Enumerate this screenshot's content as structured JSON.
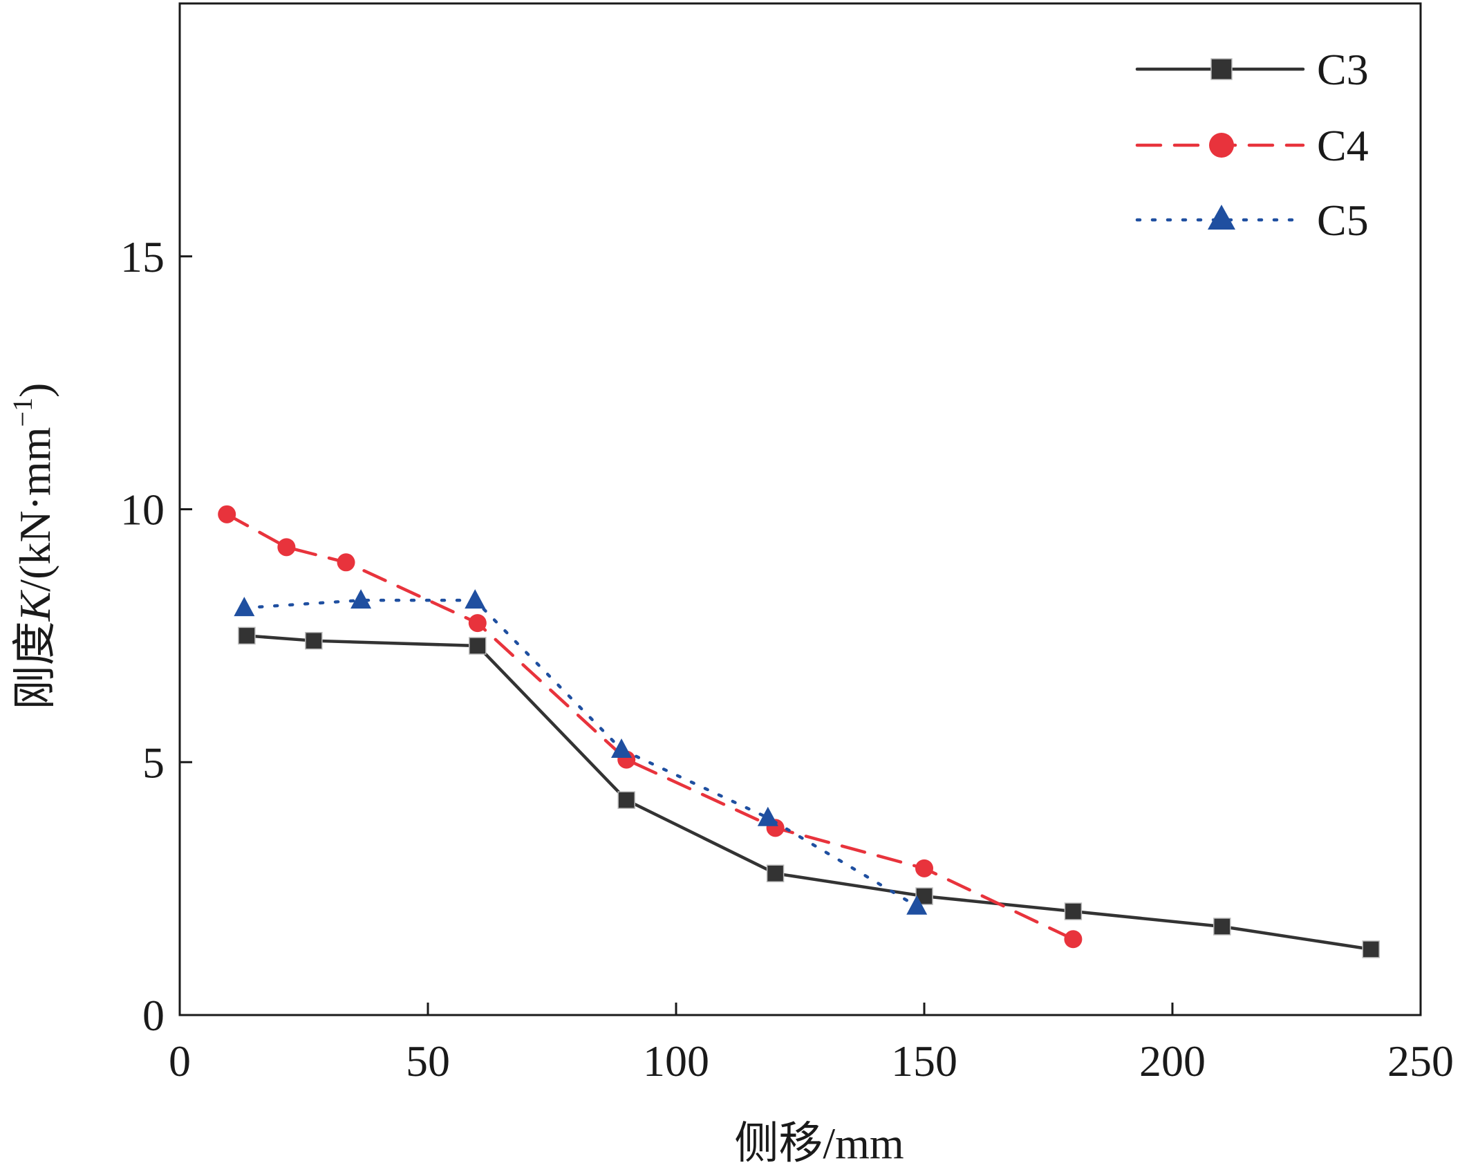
{
  "chart_data": {
    "type": "line",
    "title": "",
    "xlabel": "侧移/mm",
    "ylabel_prefix": "刚度",
    "ylabel_var": "K",
    "ylabel_unit": "/(kN·mm",
    "ylabel_sup": "−1",
    "ylabel_close": ")",
    "xlim": [
      0,
      250
    ],
    "ylim": [
      0,
      20
    ],
    "x_ticks": [
      0,
      50,
      100,
      150,
      200,
      250
    ],
    "y_ticks": [
      0,
      5,
      10,
      15
    ],
    "grid": false,
    "legend_position": "top-right",
    "series": [
      {
        "name": "C3",
        "color": "#333333",
        "line_style": "solid",
        "marker": "square",
        "x": [
          13.5,
          27,
          60,
          90,
          120,
          150,
          180,
          210,
          240
        ],
        "y": [
          7.5,
          7.4,
          7.3,
          4.25,
          2.8,
          2.35,
          2.05,
          1.75,
          1.3
        ]
      },
      {
        "name": "C4",
        "color": "#e8333c",
        "line_style": "dashed",
        "marker": "circle",
        "x": [
          9.5,
          21.5,
          33.5,
          60,
          90,
          120,
          150,
          180
        ],
        "y": [
          9.9,
          9.25,
          8.95,
          7.75,
          5.05,
          3.7,
          2.9,
          1.5
        ]
      },
      {
        "name": "C5",
        "color": "#1f4fa0",
        "line_style": "dotted",
        "marker": "triangle",
        "x": [
          13,
          36.5,
          59.5,
          89,
          118.5,
          148.5
        ],
        "y": [
          8.05,
          8.2,
          8.2,
          5.25,
          3.9,
          2.15
        ]
      }
    ]
  }
}
